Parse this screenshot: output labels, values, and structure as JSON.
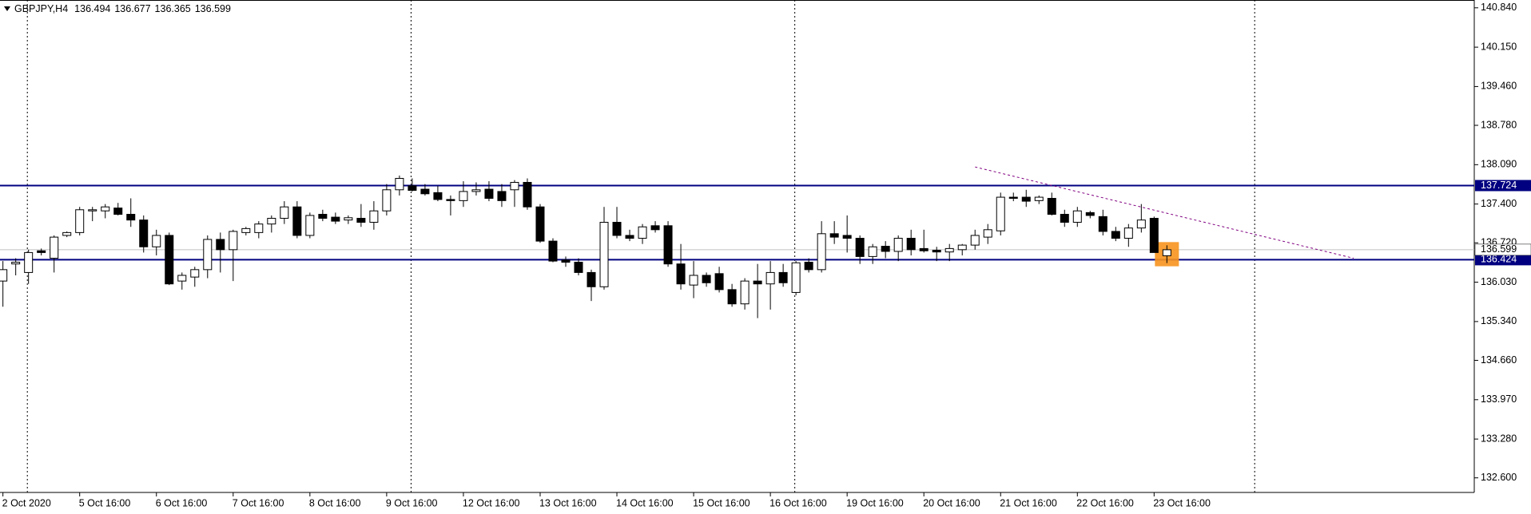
{
  "chart_data": {
    "type": "candlestick",
    "title": "GBPJPY,H4",
    "categories": [
      "2 Oct 2020",
      null,
      null,
      null,
      null,
      null,
      "5 Oct 16:00",
      null,
      null,
      null,
      null,
      null,
      "6 Oct 16:00",
      null,
      null,
      null,
      null,
      null,
      "7 Oct 16:00",
      null,
      null,
      null,
      null,
      null,
      "8 Oct 16:00",
      null,
      null,
      null,
      null,
      null,
      "9 Oct 16:00",
      null,
      null,
      null,
      null,
      null,
      "12 Oct 16:00",
      null,
      null,
      null,
      null,
      null,
      "13 Oct 16:00",
      null,
      null,
      null,
      null,
      null,
      "14 Oct 16:00",
      null,
      null,
      null,
      null,
      null,
      "15 Oct 16:00",
      null,
      null,
      null,
      null,
      null,
      "16 Oct 16:00",
      null,
      null,
      null,
      null,
      null,
      "19 Oct 16:00",
      null,
      null,
      null,
      null,
      null,
      "20 Oct 16:00",
      null,
      null,
      null,
      null,
      null,
      "21 Oct 16:00",
      null,
      null,
      null,
      null,
      null,
      "22 Oct 16:00",
      null,
      null,
      null,
      null,
      null,
      "23 Oct 16:00",
      null
    ],
    "open": [
      136.05,
      136.35,
      136.2,
      136.58,
      136.45,
      136.85,
      136.9,
      137.28,
      137.28,
      137.33,
      137.22,
      137.12,
      136.65,
      136.85,
      136.05,
      136.12,
      136.25,
      136.78,
      136.6,
      136.9,
      136.9,
      137.05,
      137.15,
      137.35,
      136.85,
      137.22,
      137.17,
      137.12,
      137.15,
      137.08,
      137.28,
      137.65,
      137.72,
      137.66,
      137.6,
      137.48,
      137.46,
      137.62,
      137.66,
      137.62,
      137.65,
      137.78,
      137.35,
      136.75,
      136.42,
      136.38,
      136.2,
      135.95,
      137.08,
      136.85,
      136.8,
      137.02,
      137.02,
      136.35,
      135.98,
      136.15,
      136.18,
      135.9,
      135.65,
      136.05,
      136.0,
      136.2,
      135.85,
      136.38,
      136.25,
      136.88,
      136.85,
      136.8,
      136.48,
      136.66,
      136.57,
      136.8,
      136.62,
      136.59,
      136.56,
      136.6,
      136.68,
      136.82,
      136.93,
      137.52,
      137.52,
      137.46,
      137.5,
      137.22,
      137.08,
      137.25,
      137.18,
      136.92,
      136.8,
      136.98,
      137.15,
      136.494
    ],
    "high": [
      136.4,
      136.45,
      136.6,
      136.62,
      136.85,
      136.92,
      137.35,
      137.35,
      137.4,
      137.42,
      137.5,
      137.2,
      136.95,
      136.9,
      136.2,
      136.3,
      136.85,
      136.9,
      136.95,
      137.0,
      137.1,
      137.2,
      137.45,
      137.45,
      137.25,
      137.3,
      137.25,
      137.2,
      137.4,
      137.45,
      137.75,
      137.9,
      137.85,
      137.75,
      137.72,
      137.55,
      137.8,
      137.78,
      137.8,
      137.75,
      137.82,
      137.85,
      137.4,
      136.8,
      136.48,
      136.45,
      136.25,
      137.35,
      137.35,
      136.95,
      137.05,
      137.1,
      137.1,
      136.7,
      136.4,
      136.2,
      136.3,
      136.0,
      136.1,
      136.35,
      136.4,
      136.35,
      136.4,
      136.45,
      137.1,
      137.1,
      137.2,
      136.85,
      136.7,
      136.75,
      136.85,
      136.95,
      136.95,
      136.65,
      136.7,
      136.7,
      136.95,
      137.05,
      137.6,
      137.6,
      137.65,
      137.55,
      137.6,
      137.3,
      137.35,
      137.28,
      137.3,
      137.0,
      137.05,
      137.4,
      137.18,
      136.677
    ],
    "low": [
      135.6,
      136.15,
      136.0,
      136.5,
      136.2,
      136.82,
      136.85,
      137.1,
      137.15,
      137.2,
      137.0,
      136.55,
      136.5,
      135.98,
      135.9,
      135.95,
      136.1,
      136.2,
      136.05,
      136.85,
      136.8,
      136.9,
      137.05,
      136.8,
      136.8,
      137.1,
      137.05,
      137.05,
      137.0,
      136.95,
      137.2,
      137.55,
      137.62,
      137.55,
      137.45,
      137.2,
      137.35,
      137.55,
      137.45,
      137.35,
      137.35,
      137.3,
      136.72,
      136.38,
      136.3,
      136.15,
      135.7,
      135.9,
      136.8,
      136.75,
      136.7,
      136.9,
      136.3,
      135.9,
      135.75,
      135.95,
      135.85,
      135.6,
      135.55,
      135.4,
      135.55,
      135.95,
      135.8,
      136.2,
      136.2,
      136.7,
      136.55,
      136.35,
      136.35,
      136.45,
      136.4,
      136.5,
      136.55,
      136.4,
      136.4,
      136.5,
      136.6,
      136.7,
      136.85,
      137.45,
      137.35,
      137.4,
      137.2,
      137.0,
      137.0,
      137.15,
      136.85,
      136.75,
      136.65,
      136.9,
      136.55,
      136.365
    ],
    "close": [
      136.25,
      136.38,
      136.55,
      136.55,
      136.82,
      136.9,
      137.3,
      137.3,
      137.35,
      137.22,
      137.12,
      136.65,
      136.85,
      136.0,
      136.15,
      136.25,
      136.78,
      136.6,
      136.92,
      136.97,
      137.05,
      137.15,
      137.35,
      136.85,
      137.2,
      137.15,
      137.1,
      137.16,
      137.08,
      137.28,
      137.65,
      137.85,
      137.64,
      137.58,
      137.48,
      137.46,
      137.62,
      137.65,
      137.5,
      137.46,
      137.78,
      137.35,
      136.75,
      136.4,
      136.38,
      136.2,
      135.95,
      137.08,
      136.85,
      136.8,
      137.0,
      136.95,
      136.35,
      136.0,
      136.15,
      136.02,
      135.9,
      135.65,
      136.05,
      136.0,
      136.2,
      136.02,
      136.37,
      136.25,
      136.88,
      136.82,
      136.8,
      136.48,
      136.65,
      136.57,
      136.8,
      136.6,
      136.58,
      136.56,
      136.62,
      136.68,
      136.85,
      136.95,
      137.52,
      137.5,
      137.45,
      137.52,
      137.22,
      137.08,
      137.28,
      137.2,
      136.92,
      136.8,
      136.98,
      137.12,
      136.55,
      136.599
    ],
    "ylim": [
      132.344,
      140.977
    ],
    "yticks": [
      {
        "value": 132.6,
        "label": "132.600"
      },
      {
        "value": 133.28,
        "label": "133.280"
      },
      {
        "value": 133.97,
        "label": "133.970"
      },
      {
        "value": 134.66,
        "label": "134.660"
      },
      {
        "value": 135.34,
        "label": "135.340"
      },
      {
        "value": 136.03,
        "label": "136.030"
      },
      {
        "value": 136.72,
        "label": "136.720"
      },
      {
        "value": 137.4,
        "label": "137.400"
      },
      {
        "value": 138.09,
        "label": "138.090"
      },
      {
        "value": 138.78,
        "label": "138.780"
      },
      {
        "value": 139.46,
        "label": "139.460"
      },
      {
        "value": 140.15,
        "label": "140.150"
      },
      {
        "value": 140.84,
        "label": "140.840"
      }
    ],
    "levels": [
      137.724,
      136.424
    ],
    "level_color": "#000080",
    "up_color": "#ffffff",
    "down_color": "#000000",
    "trendline": {
      "x": [
        76,
        105.6
      ],
      "y": [
        138.05,
        136.45
      ],
      "color": "#800080"
    }
  }
}
